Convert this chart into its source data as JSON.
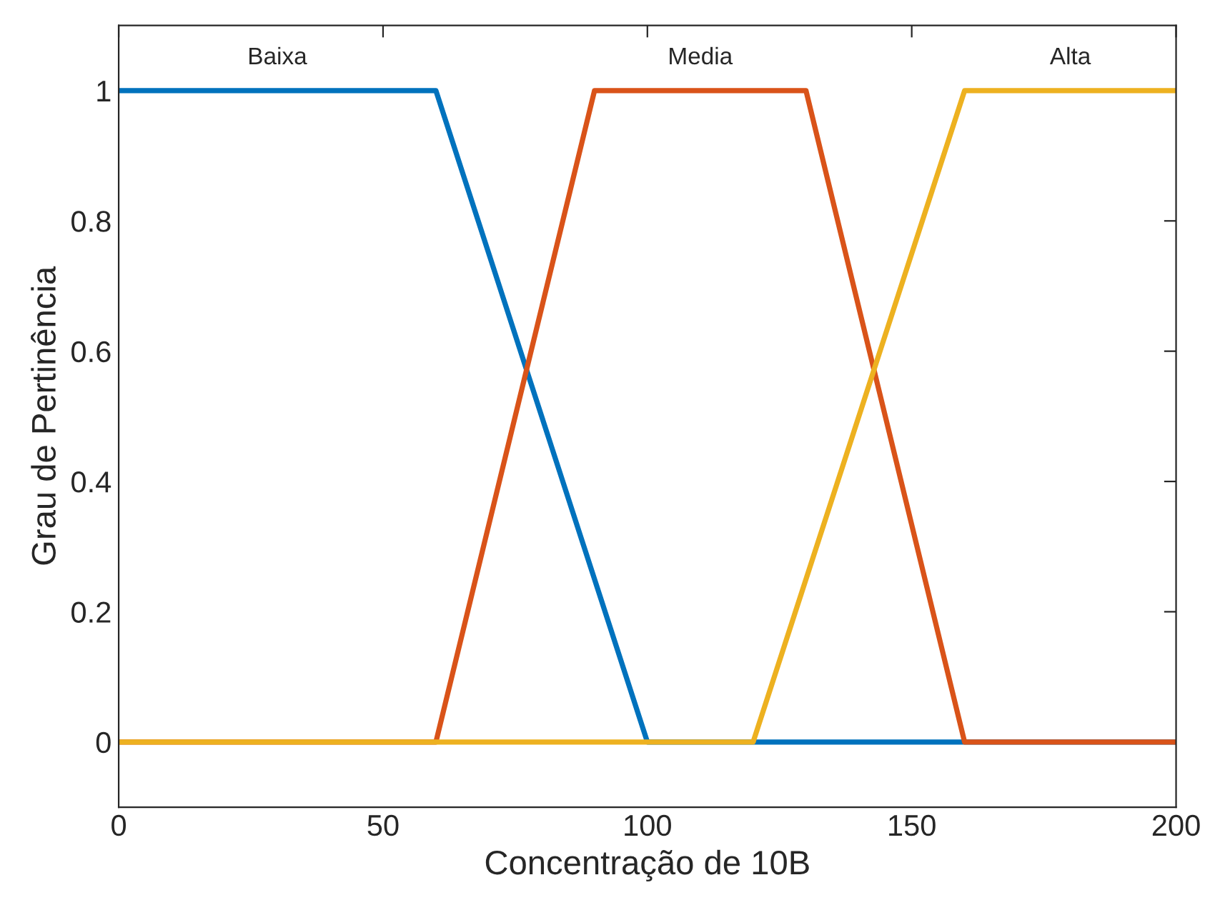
{
  "chart_data": {
    "type": "line",
    "xlabel": "Concentração de 10B",
    "ylabel": "Grau de Pertinência",
    "xlim": [
      0,
      200
    ],
    "xticks": [
      0,
      50,
      100,
      150,
      200
    ],
    "ylim": [
      -0.1,
      1.1
    ],
    "yticks": [
      0,
      0.2,
      0.4,
      0.6,
      0.8,
      1
    ],
    "grid": false,
    "marker": "none",
    "line_style": "solid",
    "series": [
      {
        "name": "Baixa",
        "color": "#0072bd",
        "x": [
          0,
          60,
          100,
          200
        ],
        "values": [
          1,
          1,
          0,
          0
        ]
      },
      {
        "name": "Media",
        "color": "#d95319",
        "x": [
          0,
          60,
          90,
          130,
          160,
          200
        ],
        "values": [
          0,
          0,
          1,
          1,
          0,
          0
        ]
      },
      {
        "name": "Alta",
        "color": "#edb120",
        "x": [
          0,
          120,
          160,
          200
        ],
        "values": [
          0,
          0,
          1,
          1
        ]
      }
    ]
  }
}
